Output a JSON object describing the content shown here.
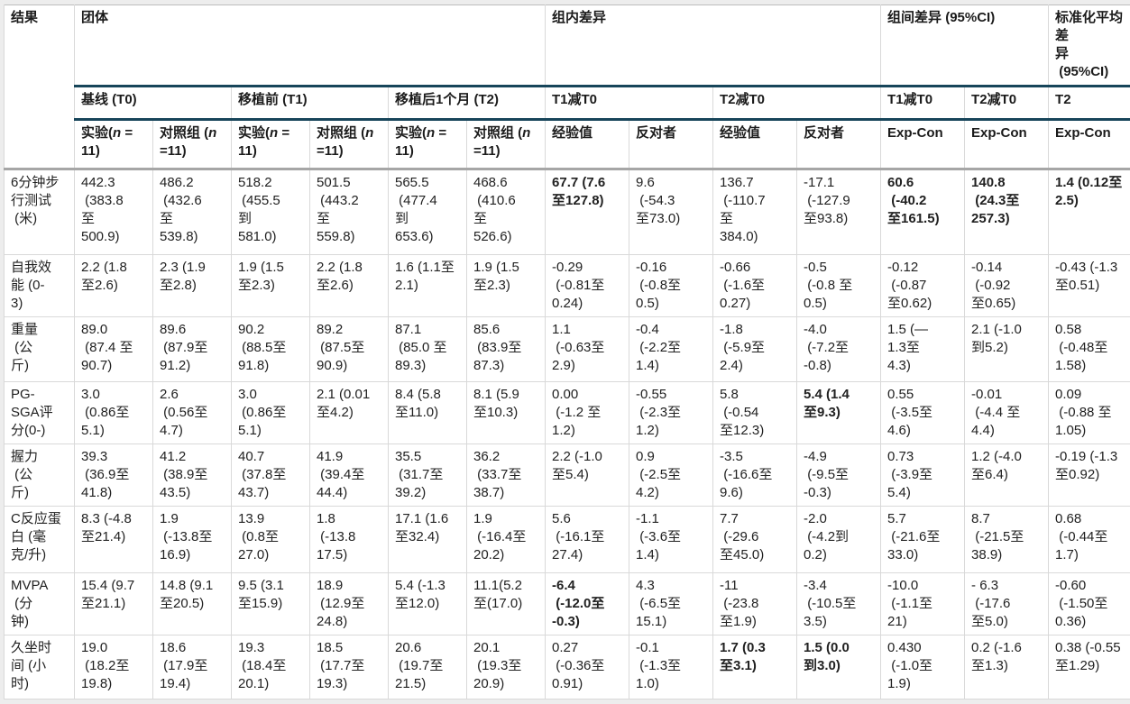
{
  "table": {
    "corner_header": "结果",
    "sections": {
      "group": "团体",
      "within": "组内差异",
      "between": "组间差异 (95%CI)",
      "smd": "标准化平均差\n异\n (95%CI)"
    },
    "period_headers": [
      "基线 (T0)",
      "移植前 (T1)",
      "移植后1个月 (T2)",
      "T1减T0",
      "T2减T0",
      "T1减T0",
      "T2减T0",
      "T2"
    ],
    "sub_headers": [
      {
        "pre": "实验(",
        "n": "n",
        "post": " =\n11)"
      },
      {
        "pre": "对照组 (",
        "n": "n",
        "post": "\n=11)"
      },
      {
        "pre": "实验(",
        "n": "n",
        "post": " =\n11)"
      },
      {
        "pre": "对照组 (",
        "n": "n",
        "post": "\n=11)"
      },
      {
        "pre": "实验(",
        "n": "n",
        "post": " =\n11)"
      },
      {
        "pre": "对照组 (",
        "n": "n",
        "post": "\n=11)"
      },
      {
        "pre": "经验值",
        "n": "",
        "post": ""
      },
      {
        "pre": "反对者",
        "n": "",
        "post": ""
      },
      {
        "pre": "经验值",
        "n": "",
        "post": ""
      },
      {
        "pre": "反对者",
        "n": "",
        "post": ""
      },
      {
        "pre": "Exp-Con",
        "n": "",
        "post": ""
      },
      {
        "pre": "Exp-Con",
        "n": "",
        "post": ""
      },
      {
        "pre": "Exp-Con",
        "n": "",
        "post": ""
      }
    ],
    "rows": [
      {
        "label": "6分钟步\n行测试\n (米)",
        "cells": [
          "442.3\n (383.8\n至\n500.9)",
          "486.2\n (432.6\n至\n539.8)",
          "518.2\n (455.5\n到\n581.0)",
          "501.5\n (443.2\n至\n559.8)",
          "565.5\n (477.4\n到\n653.6)",
          "468.6\n (410.6\n至\n526.6)",
          "67.7 (7.6\n至127.8)",
          "9.6\n (-54.3\n至73.0)",
          "136.7\n (-110.7\n至\n384.0)",
          "-17.1\n (-127.9\n至93.8)",
          "60.6\n (-40.2\n至161.5)",
          "140.8\n (24.3至\n257.3)",
          "1.4 (0.12至\n2.5)"
        ],
        "bold": [
          6,
          10,
          11,
          12
        ]
      },
      {
        "label": "自我效\n能 (0-\n3)",
        "cells": [
          "2.2 (1.8\n至2.6)",
          "2.3 (1.9\n至2.8)",
          "1.9 (1.5\n至2.3)",
          "2.2 (1.8\n至2.6)",
          "1.6 (1.1至\n2.1)",
          "1.9 (1.5\n至2.3)",
          "-0.29\n (-0.81至\n0.24)",
          "-0.16\n (-0.8至\n0.5)",
          "-0.66\n (-1.6至\n0.27)",
          "-0.5\n (-0.8 至\n0.5)",
          "-0.12\n (-0.87\n至0.62)",
          "-0.14\n (-0.92\n至0.65)",
          "-0.43 (-1.3\n至0.51)"
        ],
        "bold": []
      },
      {
        "label": "重量\n (公\n斤)",
        "cells": [
          "89.0\n (87.4 至\n90.7)",
          "89.6\n (87.9至\n91.2)",
          "90.2\n (88.5至\n91.8)",
          "89.2\n (87.5至\n90.9)",
          "87.1\n (85.0 至\n89.3)",
          "85.6\n (83.9至\n87.3)",
          "1.1\n (-0.63至\n2.9)",
          "-0.4\n (-2.2至\n1.4)",
          "-1.8\n (-5.9至\n2.4)",
          "-4.0\n (-7.2至\n-0.8)",
          "1.5 (—\n1.3至\n4.3)",
          "2.1 (-1.0\n到5.2)",
          "0.58\n (-0.48至\n1.58)"
        ],
        "bold": []
      },
      {
        "label": "PG-\nSGA评\n分(0-)",
        "cells": [
          "3.0\n (0.86至\n5.1)",
          "2.6\n (0.56至\n4.7)",
          "3.0\n (0.86至\n5.1)",
          "2.1 (0.01\n至4.2)",
          "8.4 (5.8\n至11.0)",
          "8.1 (5.9\n至10.3)",
          "0.00\n (-1.2 至\n1.2)",
          "-0.55\n (-2.3至\n1.2)",
          "5.8\n (-0.54\n至12.3)",
          "5.4 (1.4\n至9.3)",
          "0.55\n (-3.5至\n4.6)",
          "-0.01\n (-4.4 至\n4.4)",
          "0.09\n (-0.88 至\n1.05)"
        ],
        "bold": [
          9
        ]
      },
      {
        "label": "握力\n (公\n斤)",
        "cells": [
          "39.3\n (36.9至\n41.8)",
          "41.2\n (38.9至\n43.5)",
          "40.7\n (37.8至\n43.7)",
          "41.9\n (39.4至\n44.4)",
          "35.5\n (31.7至\n39.2)",
          "36.2\n (33.7至\n38.7)",
          "2.2 (-1.0\n至5.4)",
          "0.9\n (-2.5至\n4.2)",
          "-3.5\n (-16.6至\n9.6)",
          "-4.9\n (-9.5至\n-0.3)",
          "0.73\n (-3.9至\n5.4)",
          "1.2 (-4.0\n至6.4)",
          "-0.19 (-1.3\n至0.92)"
        ],
        "bold": []
      },
      {
        "label": "C反应蛋\n白 (毫\n克/升)",
        "cells": [
          "8.3 (-4.8\n至21.4)",
          "1.9\n (-13.8至\n16.9)",
          "13.9\n (0.8至\n27.0)",
          "1.8\n (-13.8\n17.5)",
          "17.1 (1.6\n至32.4)",
          "1.9\n (-16.4至\n20.2)",
          "5.6\n (-16.1至\n27.4)",
          "-1.1\n (-3.6至\n1.4)",
          "7.7\n (-29.6\n至45.0)",
          "-2.0\n (-4.2到\n0.2)",
          "5.7\n (-21.6至\n33.0)",
          "8.7\n (-21.5至\n38.9)",
          "0.68\n (-0.44至\n1.7)"
        ],
        "bold": []
      },
      {
        "label": "MVPA\n (分\n钟)",
        "cells": [
          "15.4 (9.7\n至21.1)",
          "14.8 (9.1\n至20.5)",
          "9.5 (3.1\n至15.9)",
          "18.9\n (12.9至\n24.8)",
          "5.4 (-1.3\n至12.0)",
          "11.1(5.2\n至(17.0)",
          "-6.4\n (-12.0至\n-0.3)",
          "4.3\n (-6.5至\n15.1)",
          "-11\n (-23.8\n至1.9)",
          "-3.4\n (-10.5至\n3.5)",
          "-10.0\n (-1.1至\n21)",
          "- 6.3\n (-17.6\n至5.0)",
          "-0.60\n (-1.50至\n0.36)"
        ],
        "bold": [
          6
        ]
      },
      {
        "label": "久坐时\n间 (小\n时)",
        "cells": [
          "19.0\n (18.2至\n19.8)",
          "18.6\n (17.9至\n19.4)",
          "19.3\n (18.4至\n20.1)",
          "18.5\n (17.7至\n19.3)",
          "20.6\n (19.7至\n21.5)",
          "20.1\n (19.3至\n20.9)",
          "0.27\n (-0.36至\n0.91)",
          "-0.1\n (-1.3至\n1.0)",
          "1.7 (0.3\n至3.1)",
          "1.5 (0.0\n到3.0)",
          "0.430\n (-1.0至\n1.9)",
          "0.2 (-1.6\n至1.3)",
          "0.38 (-0.55\n至1.29)"
        ],
        "bold": [
          8,
          9
        ]
      }
    ],
    "colors": {
      "header_line": "#17455a",
      "subheader_line": "#a6a6a6",
      "grid_line": "#d9d9d9",
      "text": "#212121"
    }
  }
}
